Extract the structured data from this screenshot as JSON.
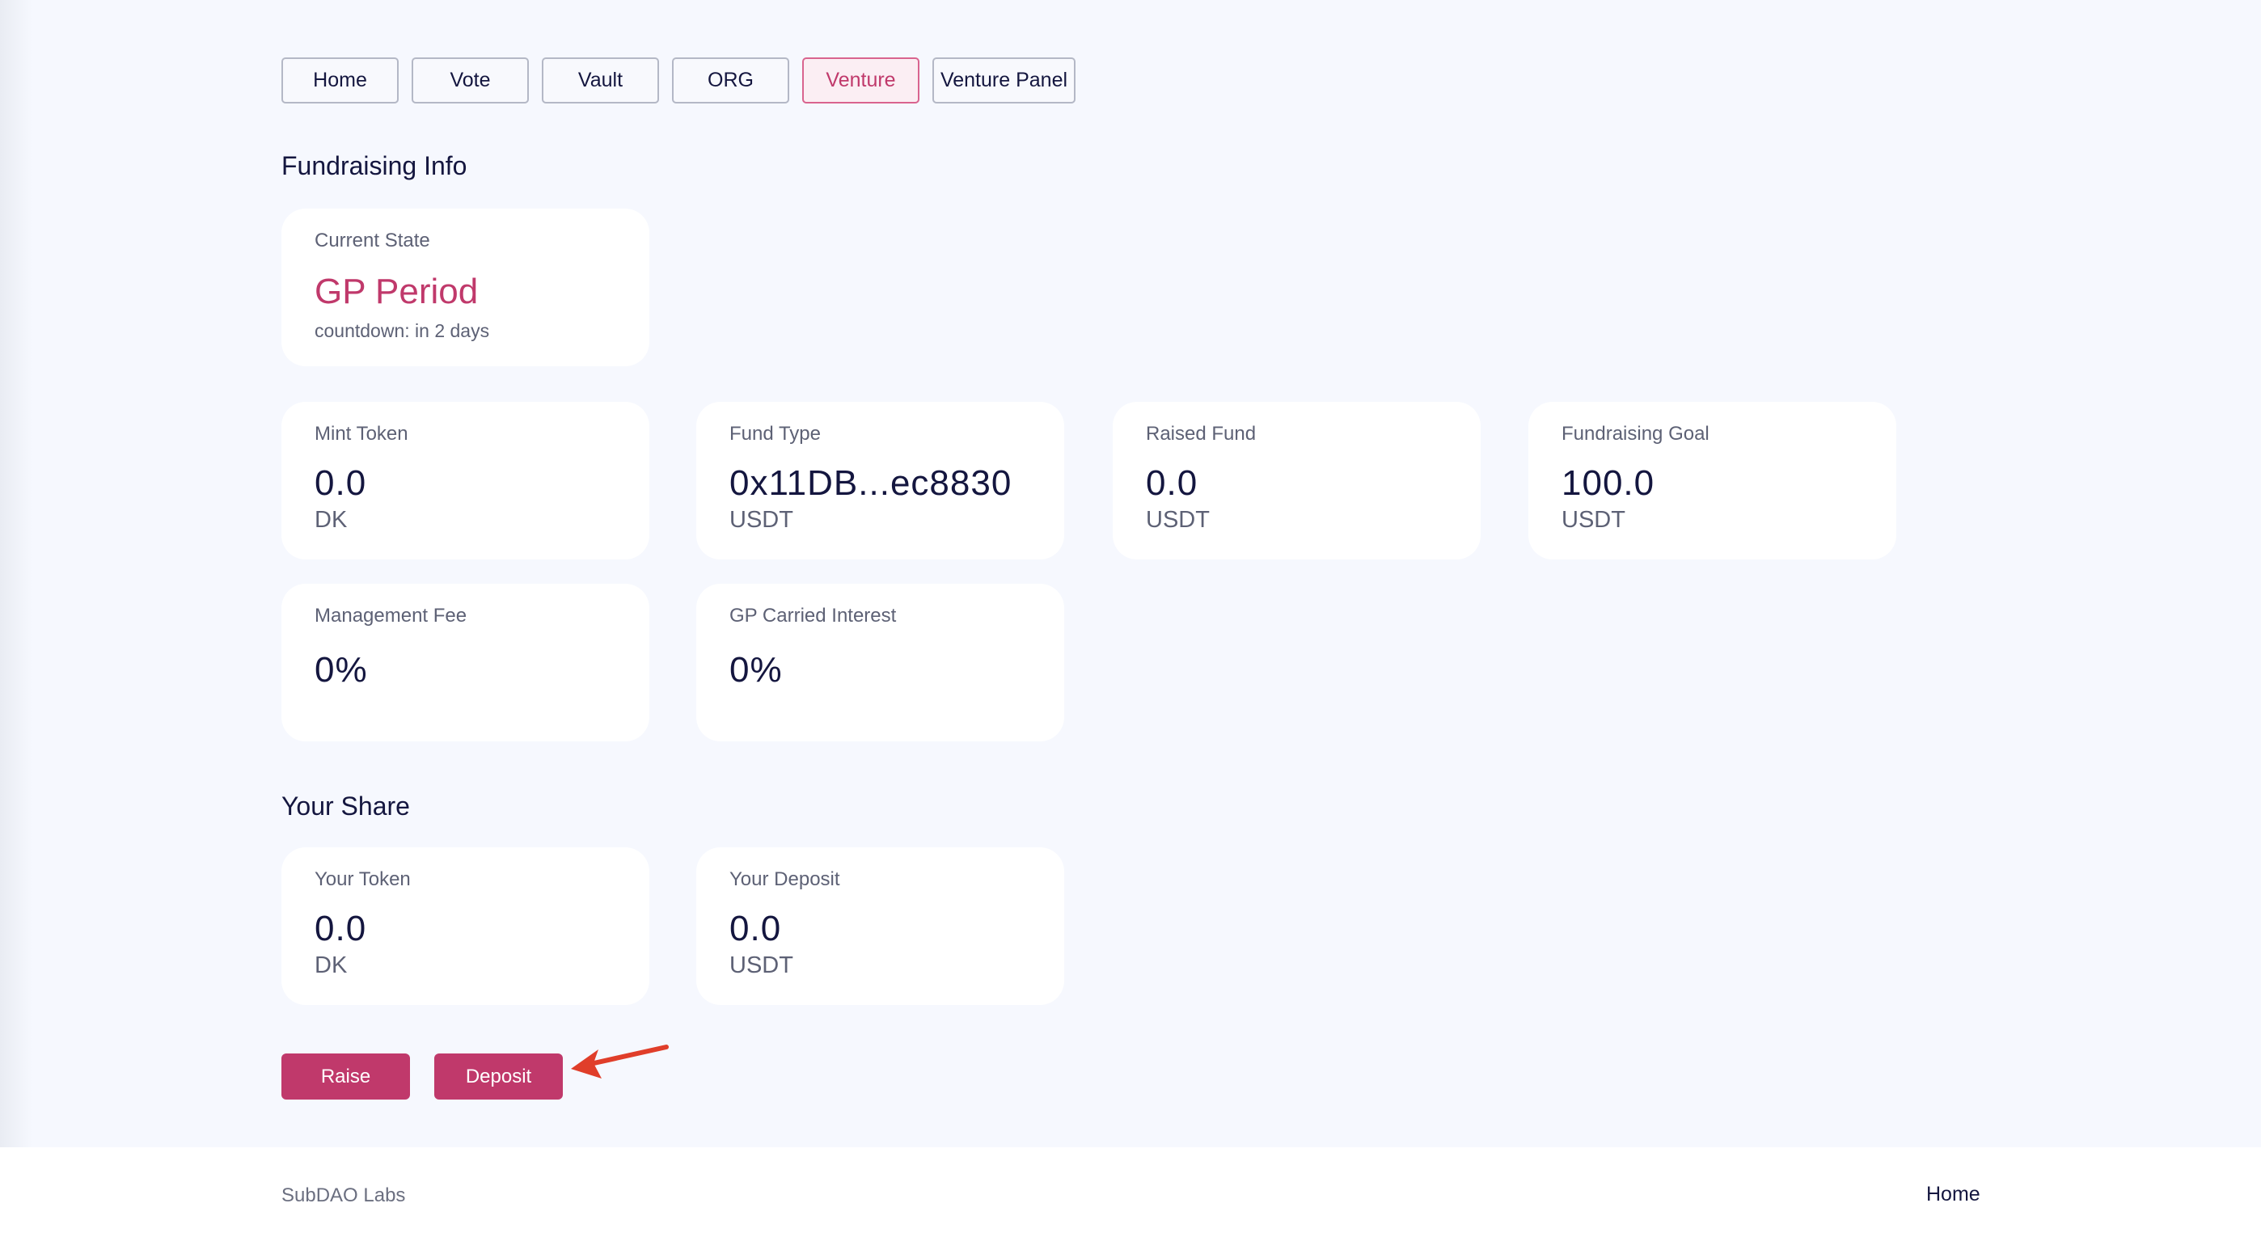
{
  "nav": {
    "items": [
      {
        "label": "Home"
      },
      {
        "label": "Vote"
      },
      {
        "label": "Vault"
      },
      {
        "label": "ORG"
      },
      {
        "label": "Venture",
        "active": true
      },
      {
        "label": "Venture Panel"
      }
    ]
  },
  "fundraising": {
    "title": "Fundraising Info",
    "state": {
      "label": "Current State",
      "value": "GP Period",
      "countdown": "countdown: in 2 days"
    },
    "mint_token": {
      "label": "Mint Token",
      "value": "0.0",
      "unit": "DK"
    },
    "fund_type": {
      "label": "Fund Type",
      "value": "0x11DB...ec8830",
      "unit": "USDT"
    },
    "raised_fund": {
      "label": "Raised Fund",
      "value": "0.0",
      "unit": "USDT"
    },
    "goal": {
      "label": "Fundraising Goal",
      "value": "100.0",
      "unit": "USDT"
    },
    "mgmt_fee": {
      "label": "Management Fee",
      "value": "0%"
    },
    "carry": {
      "label": "GP Carried Interest",
      "value": "0%"
    }
  },
  "share": {
    "title": "Your Share",
    "token": {
      "label": "Your Token",
      "value": "0.0",
      "unit": "DK"
    },
    "deposit": {
      "label": "Your Deposit",
      "value": "0.0",
      "unit": "USDT"
    }
  },
  "actions": {
    "raise": "Raise",
    "deposit": "Deposit"
  },
  "footer": {
    "brand": "SubDAO Labs",
    "home": "Home"
  },
  "colors": {
    "accent": "#c0396b",
    "text": "#14163f",
    "annotation_arrow": "#e03e2a"
  }
}
